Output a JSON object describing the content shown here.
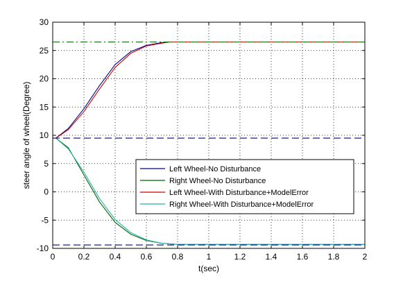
{
  "chart_data": {
    "type": "line",
    "title": "",
    "xlabel": "t(sec)",
    "ylabel": "steer angle of wheel(Degree)",
    "xlim": [
      0,
      2
    ],
    "ylim": [
      -10,
      30
    ],
    "xticks": [
      0,
      0.2,
      0.4,
      0.6,
      0.8,
      1,
      1.2,
      1.4,
      1.6,
      1.8,
      2
    ],
    "yticks": [
      -10,
      -5,
      0,
      5,
      10,
      15,
      20,
      25,
      30
    ],
    "grid": true,
    "legend_position": "lower-right",
    "series": [
      {
        "name": "Left Wheel-No Disturbance",
        "color": "#00008b",
        "style": "solid",
        "x": [
          0.02,
          0.1,
          0.2,
          0.3,
          0.4,
          0.5,
          0.6,
          0.7,
          0.75,
          0.8,
          2.0
        ],
        "y": [
          9.5,
          11.2,
          14.7,
          18.8,
          22.5,
          24.8,
          25.9,
          26.4,
          26.5,
          26.5,
          26.5
        ]
      },
      {
        "name": "Right Wheel-No Disturbance",
        "color": "#006400",
        "style": "solid",
        "x": [
          0.02,
          0.1,
          0.2,
          0.3,
          0.4,
          0.5,
          0.6,
          0.7,
          0.8,
          2.0
        ],
        "y": [
          9.5,
          7.8,
          3.0,
          -1.8,
          -5.4,
          -7.5,
          -8.6,
          -9.1,
          -9.3,
          -9.3
        ]
      },
      {
        "name": "Left Wheel-With Disturbance+ModelError",
        "color": "#cc0000",
        "style": "solid",
        "x": [
          0.02,
          0.1,
          0.2,
          0.3,
          0.4,
          0.5,
          0.6,
          0.7,
          0.75,
          0.8,
          2.0
        ],
        "y": [
          9.5,
          11.0,
          14.2,
          18.2,
          22.0,
          24.5,
          25.8,
          26.3,
          26.5,
          26.5,
          26.5
        ]
      },
      {
        "name": "Right Wheel-With Disturbance+ModelError",
        "color": "#20b2aa",
        "style": "solid",
        "x": [
          0.02,
          0.1,
          0.2,
          0.3,
          0.4,
          0.5,
          0.6,
          0.7,
          0.8,
          2.0
        ],
        "y": [
          9.5,
          7.6,
          3.5,
          -1.2,
          -4.9,
          -7.2,
          -8.5,
          -9.1,
          -9.3,
          -9.3
        ]
      },
      {
        "name": "",
        "color": "#006400",
        "style": "dashdot",
        "x": [
          0,
          2
        ],
        "y": [
          26.5,
          26.5
        ]
      },
      {
        "name": "",
        "color": "#00008b",
        "style": "dashed",
        "x": [
          0,
          2
        ],
        "y": [
          9.5,
          9.5
        ]
      },
      {
        "name": "",
        "color": "#00008b",
        "style": "dashed",
        "x": [
          0,
          2
        ],
        "y": [
          -9.4,
          -9.4
        ]
      }
    ]
  }
}
